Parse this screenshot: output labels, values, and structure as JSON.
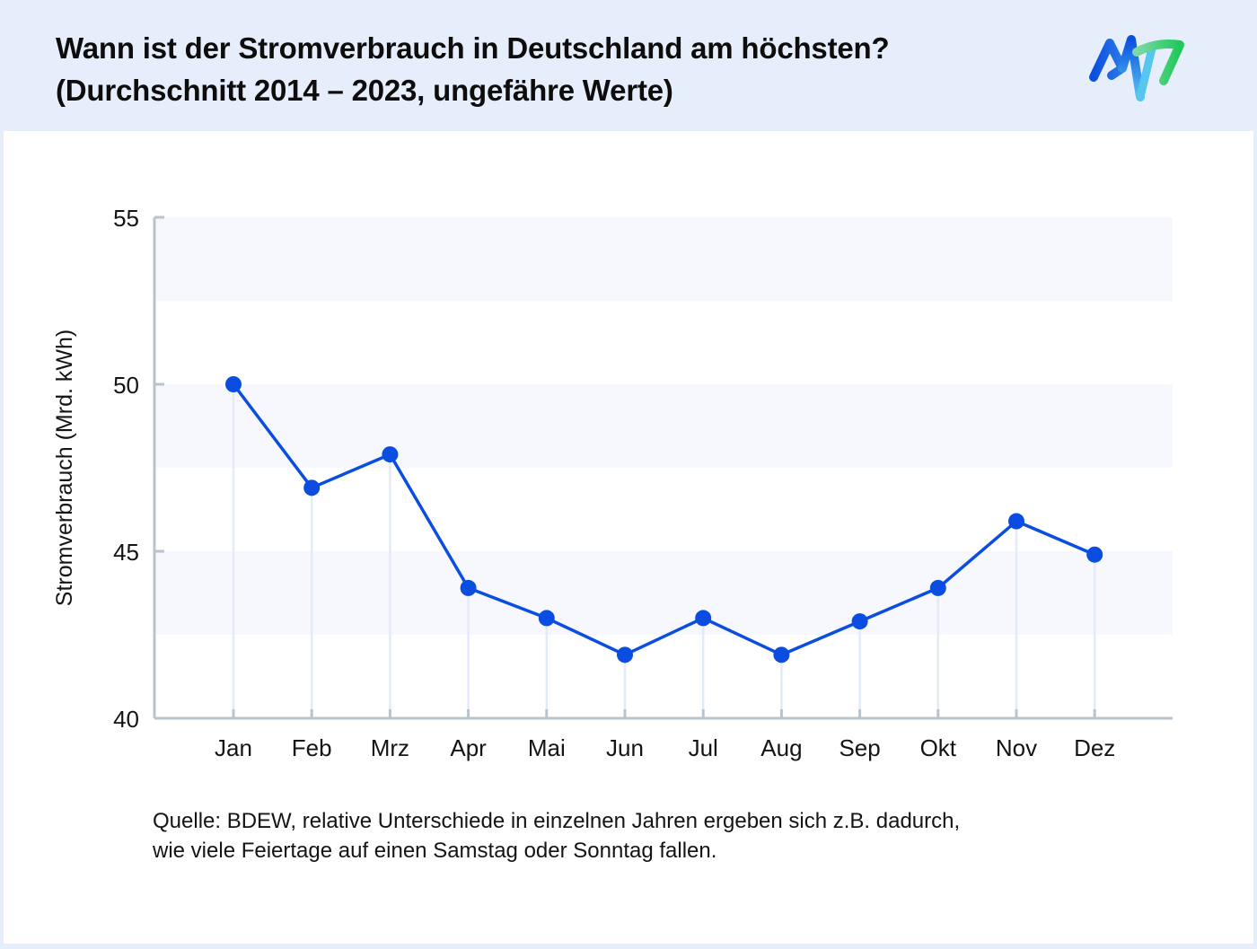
{
  "header": {
    "title_line1": "Wann ist der Stromverbrauch in Deutschland am höchsten?",
    "title_line2": "(Durchschnitt 2014 – 2023, ungefähre Werte)",
    "logo_icon": "mw-wave-logo"
  },
  "colors": {
    "background": "#e7eefb",
    "line": "#0a4de0",
    "axis": "#b8c3cc",
    "band": "#f6f8fd",
    "dropline": "#e3eaf8",
    "logo_blue": "#0b4fe0",
    "logo_green": "#1fc95a",
    "logo_cyan": "#56c6ef"
  },
  "chart_data": {
    "type": "line",
    "title": "Wann ist der Stromverbrauch in Deutschland am höchsten? (Durchschnitt 2014 – 2023, ungefähre Werte)",
    "xlabel": "",
    "ylabel": "Stromverbrauch (Mrd. kWh)",
    "ylim": [
      40,
      55
    ],
    "yticks": [
      40,
      45,
      50,
      55
    ],
    "categories": [
      "Jan",
      "Feb",
      "Mrz",
      "Apr",
      "Mai",
      "Jun",
      "Jul",
      "Aug",
      "Sep",
      "Okt",
      "Nov",
      "Dez"
    ],
    "series": [
      {
        "name": "Stromverbrauch",
        "values": [
          50.0,
          46.9,
          47.9,
          43.9,
          43.0,
          41.9,
          43.0,
          41.9,
          42.9,
          43.9,
          45.9,
          44.9
        ]
      }
    ],
    "grid": "alternating horizontal bands",
    "legend": "none"
  },
  "footer": {
    "source_line1": "Quelle: BDEW, relative Unterschiede in einzelnen Jahren ergeben sich z.B. dadurch,",
    "source_line2": "wie viele Feiertage auf einen Samstag oder Sonntag fallen."
  }
}
